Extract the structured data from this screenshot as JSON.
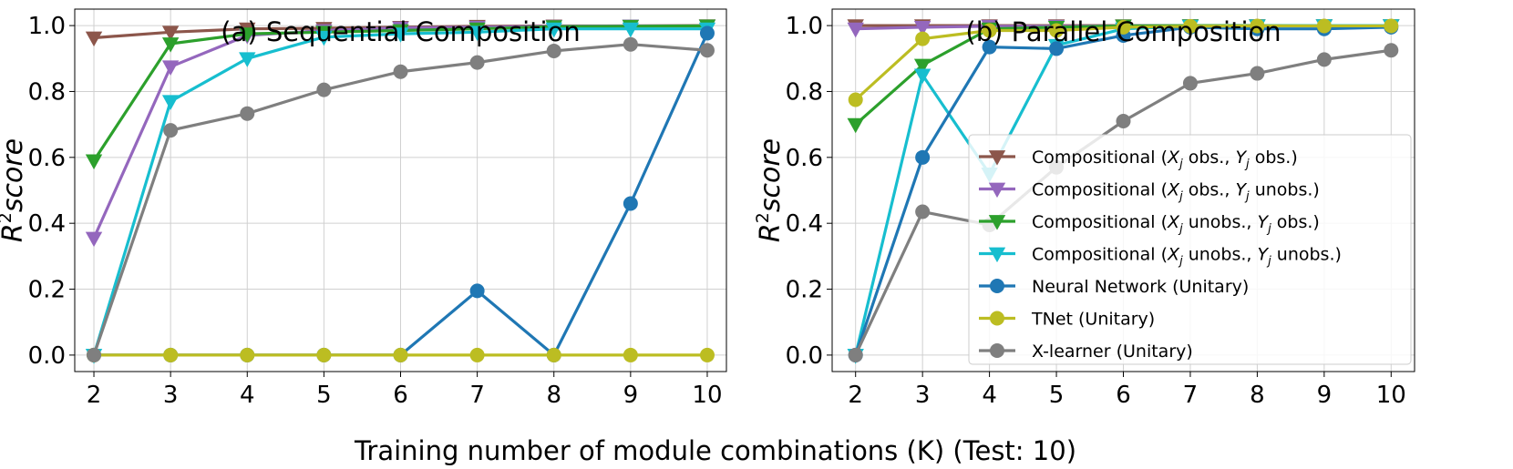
{
  "chart_data": [
    {
      "type": "line",
      "title": "(a) Sequential Composition",
      "xlabel": "",
      "ylabel": "R²score",
      "x": [
        2,
        3,
        4,
        5,
        6,
        7,
        8,
        9,
        10
      ],
      "xlim": [
        1.75,
        10.25
      ],
      "ylim": [
        -0.05,
        1.05
      ],
      "yticks": [
        "0.0",
        "0.2",
        "0.4",
        "0.6",
        "0.8",
        "1.0"
      ],
      "xticks": [
        "2",
        "3",
        "4",
        "5",
        "6",
        "7",
        "8",
        "9",
        "10"
      ],
      "grid": true,
      "series": [
        {
          "name": "Compositional (Xj obs., Yj obs.)",
          "color": "#8c564b",
          "marker": "triangle-down",
          "values": [
            0.963,
            0.98,
            0.99,
            0.992,
            0.995,
            0.998,
            0.999,
            0.999,
            1.0
          ]
        },
        {
          "name": "Compositional (Xj obs., Yj unobs.)",
          "color": "#9467bd",
          "marker": "triangle-down",
          "values": [
            0.355,
            0.875,
            0.97,
            0.985,
            0.993,
            0.995,
            0.998,
            0.999,
            0.999
          ]
        },
        {
          "name": "Compositional (Xj unobs., Yj obs.)",
          "color": "#2ca02c",
          "marker": "triangle-down",
          "values": [
            0.59,
            0.945,
            0.975,
            0.98,
            0.985,
            0.99,
            0.997,
            0.998,
            0.999
          ]
        },
        {
          "name": "Compositional (Xj unobs., Yj unobs.)",
          "color": "#17becf",
          "marker": "triangle-down",
          "values": [
            0.0,
            0.77,
            0.9,
            0.965,
            0.975,
            0.98,
            0.99,
            0.99,
            0.99
          ]
        },
        {
          "name": "Neural Network (Unitary)",
          "color": "#1f77b4",
          "marker": "circle",
          "values": [
            0.0,
            0.0,
            0.0,
            0.0,
            0.0,
            0.195,
            0.0,
            0.46,
            0.977
          ]
        },
        {
          "name": "TNet (Unitary)",
          "color": "#bcbd22",
          "marker": "circle",
          "values": [
            0,
            0,
            0,
            0,
            0,
            0,
            0,
            0,
            0
          ]
        },
        {
          "name": "X-learner (Unitary)",
          "color": "#7f7f7f",
          "marker": "circle",
          "values": [
            0.0,
            0.682,
            0.733,
            0.805,
            0.86,
            0.888,
            0.923,
            0.943,
            0.925
          ]
        }
      ]
    },
    {
      "type": "line",
      "title": "(b) Parallel Composition",
      "xlabel": "",
      "ylabel": "R²score",
      "x": [
        2,
        3,
        4,
        5,
        6,
        7,
        8,
        9,
        10
      ],
      "xlim": [
        1.65,
        10.35
      ],
      "ylim": [
        -0.05,
        1.05
      ],
      "yticks": [
        "0.0",
        "0.2",
        "0.4",
        "0.6",
        "0.8",
        "1.0"
      ],
      "xticks": [
        "2",
        "3",
        "4",
        "5",
        "6",
        "7",
        "8",
        "9",
        "10"
      ],
      "grid": true,
      "legend": "lower-right",
      "series": [
        {
          "name": "Compositional (Xj obs., Yj obs.)",
          "color": "#8c564b",
          "marker": "triangle-down",
          "values": [
            1.0,
            1.0,
            1.0,
            1.0,
            1.0,
            1.0,
            1.0,
            1.0,
            1.0
          ]
        },
        {
          "name": "Compositional (Xj obs., Yj unobs.)",
          "color": "#9467bd",
          "marker": "triangle-down",
          "values": [
            0.99,
            0.995,
            0.998,
            0.998,
            0.999,
            1.0,
            1.0,
            1.0,
            1.0
          ]
        },
        {
          "name": "Compositional (Xj unobs., Yj obs.)",
          "color": "#2ca02c",
          "marker": "triangle-down",
          "values": [
            0.7,
            0.88,
            0.99,
            0.995,
            0.999,
            1.0,
            1.0,
            1.0,
            1.0
          ]
        },
        {
          "name": "Compositional (Xj unobs., Yj unobs.)",
          "color": "#17becf",
          "marker": "triangle-down",
          "values": [
            0.0,
            0.85,
            0.55,
            0.94,
            0.99,
            0.998,
            0.999,
            1.0,
            1.0
          ]
        },
        {
          "name": "Neural Network (Unitary)",
          "color": "#1f77b4",
          "marker": "circle",
          "values": [
            0.0,
            0.6,
            0.935,
            0.93,
            0.97,
            0.995,
            0.99,
            0.99,
            0.995
          ]
        },
        {
          "name": "TNet (Unitary)",
          "color": "#bcbd22",
          "marker": "circle",
          "values": [
            0.775,
            0.96,
            0.985,
            0.985,
            0.995,
            0.998,
            0.999,
            0.999,
            0.999
          ]
        },
        {
          "name": "X-learner (Unitary)",
          "color": "#7f7f7f",
          "marker": "circle",
          "values": [
            0.0,
            0.435,
            0.395,
            0.57,
            0.71,
            0.825,
            0.855,
            0.897,
            0.925
          ]
        }
      ]
    }
  ],
  "shared_xlabel": "Training number of module combinations (K) (Test: 10)",
  "legend_labels": [
    {
      "pre": "Compositional (",
      "a": "X",
      "as": "j",
      "mid": " obs., ",
      "b": "Y",
      "bs": "j",
      "post": " obs.)"
    },
    {
      "pre": "Compositional (",
      "a": "X",
      "as": "j",
      "mid": " obs., ",
      "b": "Y",
      "bs": "j",
      "post": " unobs.)"
    },
    {
      "pre": "Compositional (",
      "a": "X",
      "as": "j",
      "mid": " unobs., ",
      "b": "Y",
      "bs": "j",
      "post": " obs.)"
    },
    {
      "pre": "Compositional (",
      "a": "X",
      "as": "j",
      "mid": " unobs., ",
      "b": "Y",
      "bs": "j",
      "post": " unobs.)"
    },
    {
      "pre": "Neural Network (Unitary)"
    },
    {
      "pre": "TNet (Unitary)"
    },
    {
      "pre": "X-learner (Unitary)"
    }
  ]
}
